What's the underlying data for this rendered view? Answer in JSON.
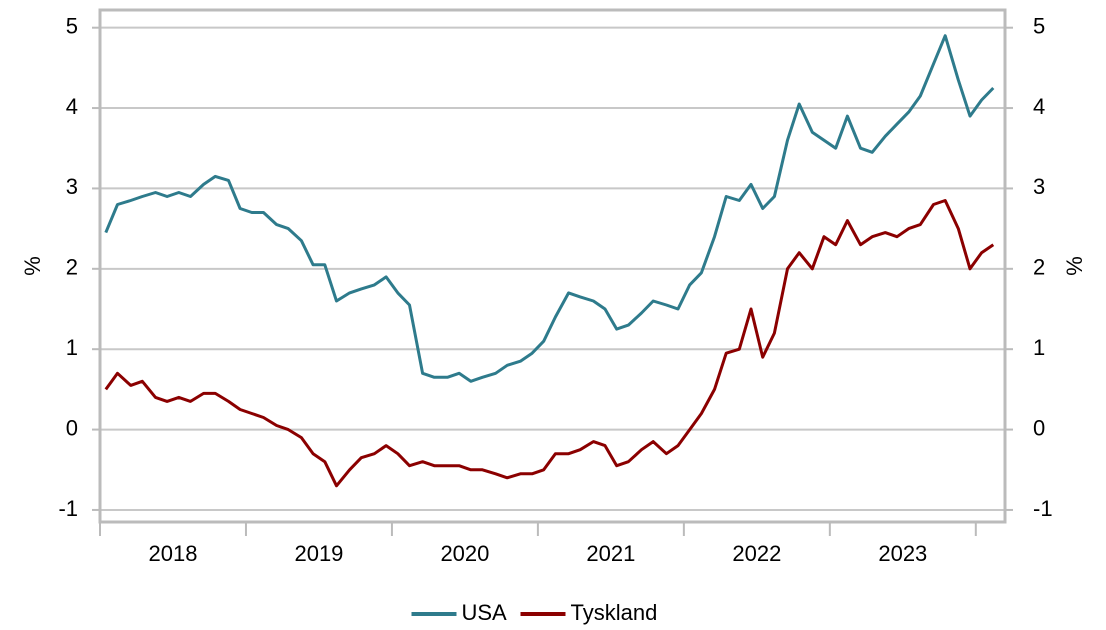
{
  "chart_data": {
    "type": "line",
    "x": [
      2018.04,
      2018.12,
      2018.21,
      2018.29,
      2018.38,
      2018.46,
      2018.54,
      2018.62,
      2018.71,
      2018.79,
      2018.88,
      2018.96,
      2019.04,
      2019.12,
      2019.21,
      2019.29,
      2019.38,
      2019.46,
      2019.54,
      2019.62,
      2019.71,
      2019.79,
      2019.88,
      2019.96,
      2020.04,
      2020.12,
      2020.21,
      2020.29,
      2020.38,
      2020.46,
      2020.54,
      2020.62,
      2020.71,
      2020.79,
      2020.88,
      2020.96,
      2021.04,
      2021.12,
      2021.21,
      2021.29,
      2021.38,
      2021.46,
      2021.54,
      2021.62,
      2021.71,
      2021.79,
      2021.88,
      2021.96,
      2022.04,
      2022.12,
      2022.21,
      2022.29,
      2022.38,
      2022.46,
      2022.54,
      2022.62,
      2022.71,
      2022.79,
      2022.88,
      2022.96,
      2023.04,
      2023.12,
      2023.21,
      2023.29,
      2023.38,
      2023.46,
      2023.54,
      2023.62,
      2023.71,
      2023.79,
      2023.88,
      2023.96,
      2024.04,
      2024.12
    ],
    "series": [
      {
        "name": "USA",
        "color": "#2e7b8c",
        "values": [
          2.45,
          2.8,
          2.85,
          2.9,
          2.95,
          2.9,
          2.95,
          2.9,
          3.05,
          3.15,
          3.1,
          2.75,
          2.7,
          2.7,
          2.55,
          2.5,
          2.35,
          2.05,
          2.05,
          1.6,
          1.7,
          1.75,
          1.8,
          1.9,
          1.7,
          1.55,
          0.7,
          0.65,
          0.65,
          0.7,
          0.6,
          0.65,
          0.7,
          0.8,
          0.85,
          0.95,
          1.1,
          1.4,
          1.7,
          1.65,
          1.6,
          1.5,
          1.25,
          1.3,
          1.45,
          1.6,
          1.55,
          1.5,
          1.8,
          1.95,
          2.4,
          2.9,
          2.85,
          3.05,
          2.75,
          2.9,
          3.6,
          4.05,
          3.7,
          3.6,
          3.5,
          3.9,
          3.5,
          3.45,
          3.65,
          3.8,
          3.95,
          4.15,
          4.55,
          4.9,
          4.35,
          3.9,
          4.1,
          4.25
        ]
      },
      {
        "name": "Tyskland",
        "color": "#8b0000",
        "values": [
          0.5,
          0.7,
          0.55,
          0.6,
          0.4,
          0.35,
          0.4,
          0.35,
          0.45,
          0.45,
          0.35,
          0.25,
          0.2,
          0.15,
          0.05,
          0.0,
          -0.1,
          -0.3,
          -0.4,
          -0.7,
          -0.5,
          -0.35,
          -0.3,
          -0.2,
          -0.3,
          -0.45,
          -0.4,
          -0.45,
          -0.45,
          -0.45,
          -0.5,
          -0.5,
          -0.55,
          -0.6,
          -0.55,
          -0.55,
          -0.5,
          -0.3,
          -0.3,
          -0.25,
          -0.15,
          -0.2,
          -0.45,
          -0.4,
          -0.25,
          -0.15,
          -0.3,
          -0.2,
          0.0,
          0.2,
          0.5,
          0.95,
          1.0,
          1.5,
          0.9,
          1.2,
          2.0,
          2.2,
          2.0,
          2.4,
          2.3,
          2.6,
          2.3,
          2.4,
          2.45,
          2.4,
          2.5,
          2.55,
          2.8,
          2.85,
          2.5,
          2.0,
          2.2,
          2.3
        ]
      }
    ],
    "xlim": [
      2018.0,
      2024.2
    ],
    "xticks": [
      {
        "value": 2018.5,
        "label": "2018"
      },
      {
        "value": 2019.5,
        "label": "2019"
      },
      {
        "value": 2020.5,
        "label": "2020"
      },
      {
        "value": 2021.5,
        "label": "2021"
      },
      {
        "value": 2022.5,
        "label": "2022"
      },
      {
        "value": 2023.5,
        "label": "2023"
      }
    ],
    "ylim": [
      -1.15,
      5.22
    ],
    "yticks": [
      -1,
      0,
      1,
      2,
      3,
      4,
      5
    ],
    "y2lim": [
      -1.15,
      5.22
    ],
    "y2ticks": [
      -1,
      0,
      1,
      2,
      3,
      4,
      5
    ],
    "ylabel": "%",
    "y2label": "%",
    "grid": true,
    "legend": "bottom"
  }
}
